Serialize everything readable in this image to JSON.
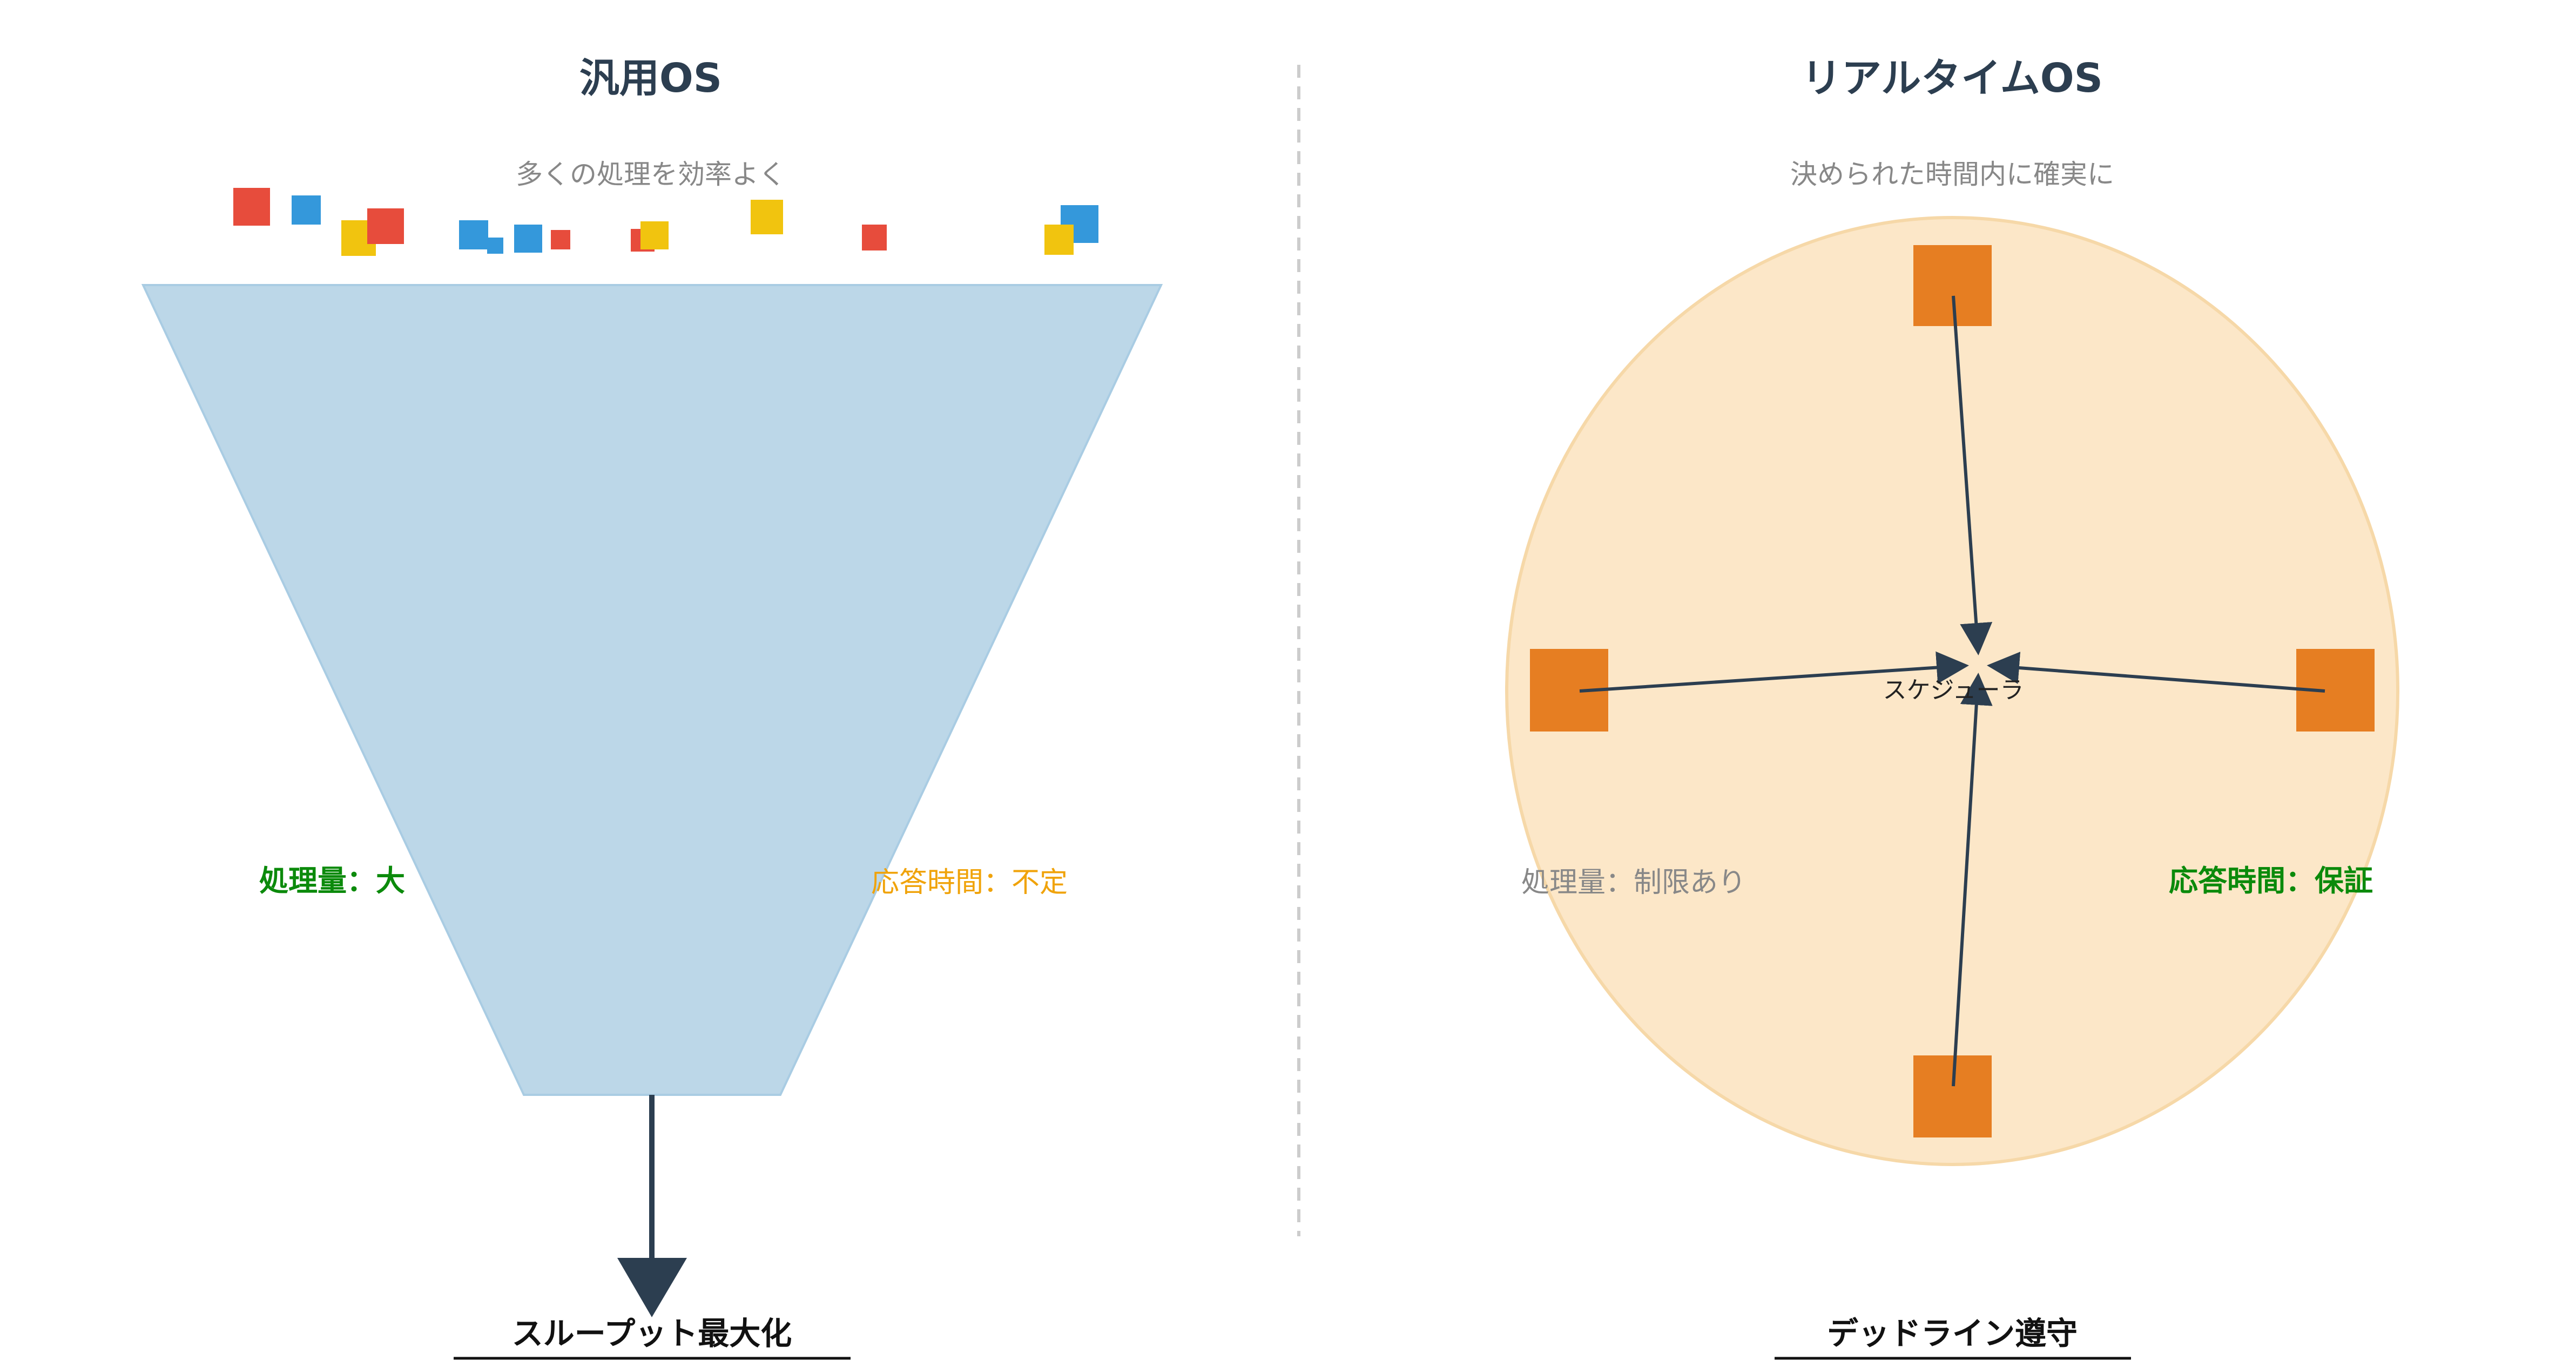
{
  "general_os": {
    "title": "汎用OS",
    "subtitle": "多くの処理を効率よく",
    "label_left": "処理量：大",
    "label_right": "応答時間：不定",
    "bottom_label": "スループット最大化",
    "colors": {
      "funnel": "#bcd7e8",
      "arrow": "#2c3e50",
      "label_left": "#0b8a0b",
      "label_right": "#f0a30a",
      "red": "#e74c3c",
      "blue": "#3498db",
      "yellow": "#f1c40f"
    }
  },
  "realtime_os": {
    "title": "リアルタイムOS",
    "subtitle": "決められた時間内に確実に",
    "scheduler_label": "スケジューラ",
    "label_left": "処理量：制限あり",
    "label_right": "応答時間：保証",
    "bottom_label": "デッドライン遵守",
    "colors": {
      "circle": "#fce7c8",
      "circle_stroke": "#f6d8a8",
      "task": "#e67e22",
      "arrow": "#2c3e50",
      "label_left": "#888888",
      "label_right": "#0b8a0b"
    }
  },
  "divider": {
    "color": "#cccccc",
    "style": "dashed"
  }
}
